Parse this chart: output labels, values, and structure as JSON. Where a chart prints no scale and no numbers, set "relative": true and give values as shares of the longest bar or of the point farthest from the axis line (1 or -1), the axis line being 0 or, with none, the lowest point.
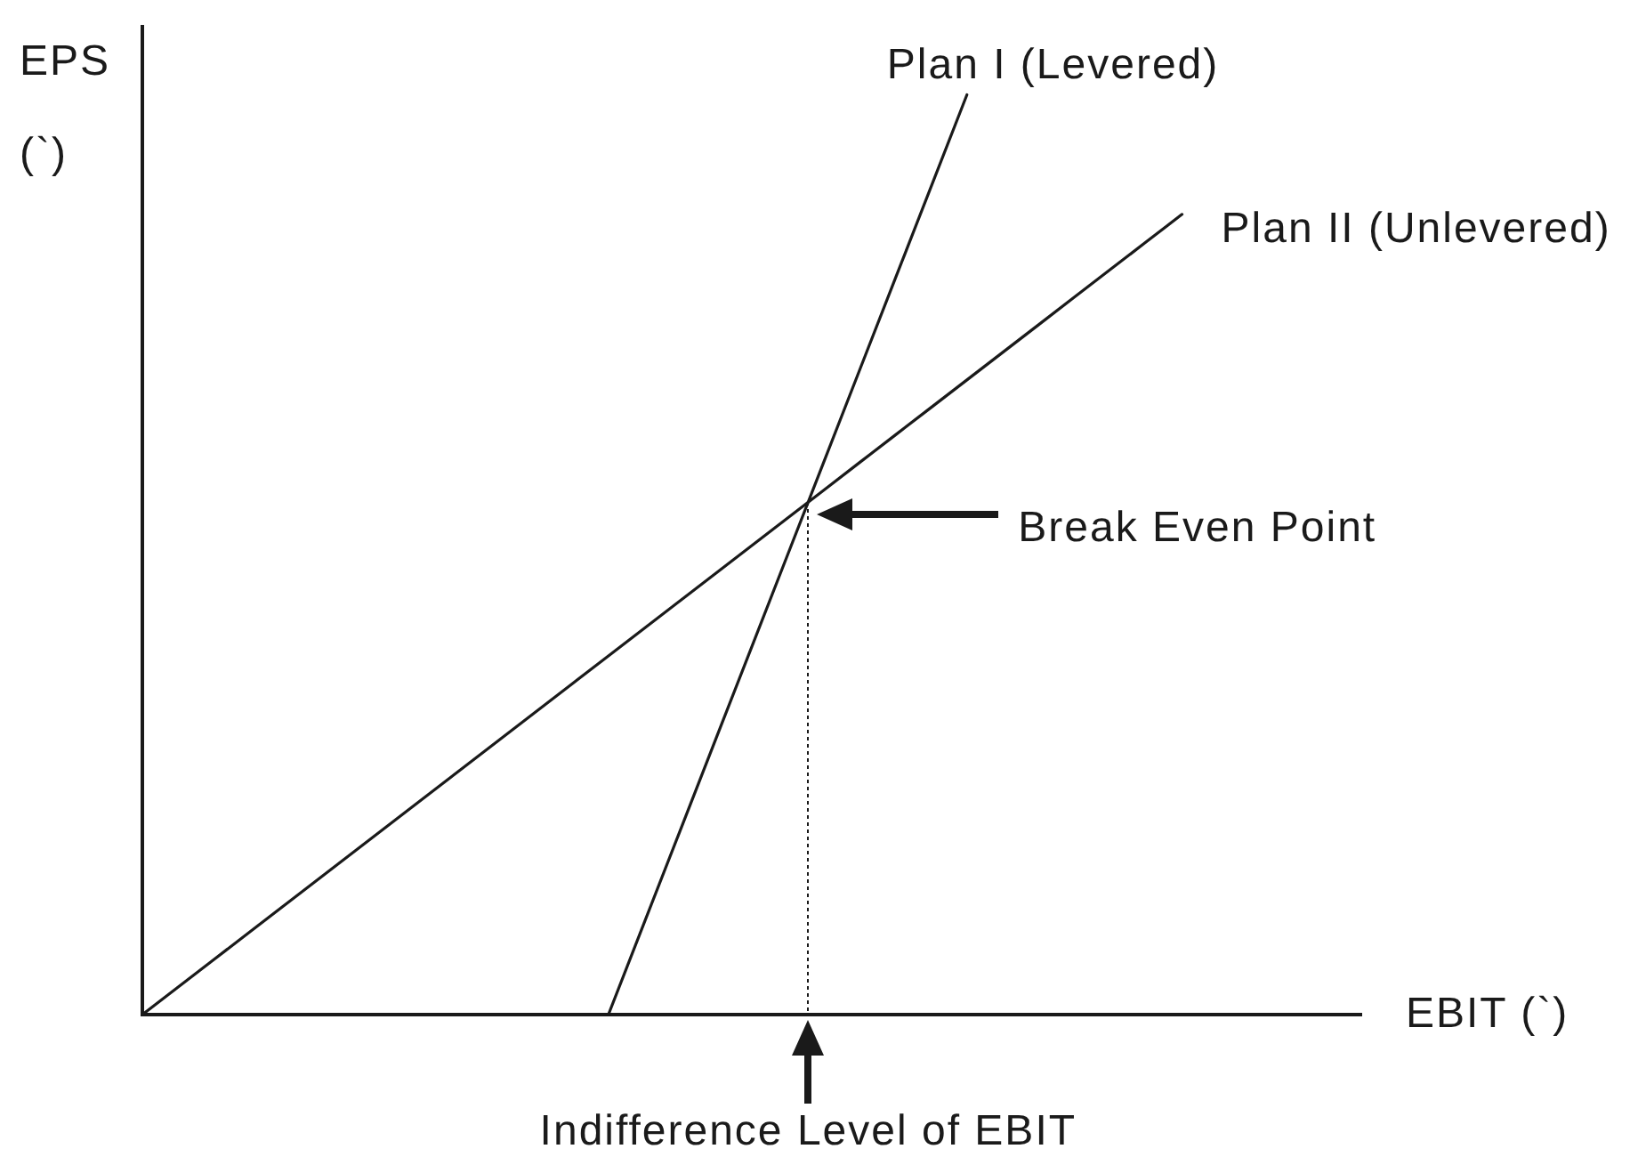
{
  "chart_data": {
    "type": "line",
    "relative": true,
    "xlabel": "EBIT (`)",
    "ylabel": "EPS (`)",
    "categories": [
      null,
      null,
      null,
      null,
      null,
      null,
      null,
      null,
      null,
      null,
      null,
      null,
      null,
      null,
      null,
      null,
      null,
      null,
      null,
      null,
      null,
      null,
      null,
      null,
      null,
      null,
      null,
      null,
      null,
      null,
      null,
      null,
      null,
      null,
      null
    ],
    "series": [
      {
        "name": "Plan I (Levered)",
        "color": "#1a1a1a",
        "values": [
          null,
          null,
          null,
          null,
          null,
          null,
          null,
          null,
          null,
          null,
          null,
          null,
          null,
          0,
          0.1,
          0.2,
          0.3,
          0.4,
          0.5,
          0.6,
          0.7,
          0.8,
          0.9,
          1,
          null,
          null,
          null,
          null,
          null,
          null,
          null,
          null,
          null,
          null,
          null
        ]
      },
      {
        "name": "Plan II (Unlevered)",
        "color": "#1a1a1a",
        "values": [
          0,
          0.03,
          0.06,
          0.09,
          0.12,
          0.15,
          0.18,
          0.21,
          0.24,
          0.27,
          0.3,
          0.33,
          0.36,
          0.39,
          0.42,
          0.45,
          0.48,
          0.51,
          0.54,
          0.57,
          0.6,
          0.63,
          0.66,
          0.69,
          0.72,
          0.75,
          0.78,
          0.81,
          0.84,
          0.87,
          null,
          null,
          null,
          null,
          null
        ]
      }
    ],
    "annotations": [
      "Break Even Point",
      "Indifference Level of EBIT"
    ]
  }
}
